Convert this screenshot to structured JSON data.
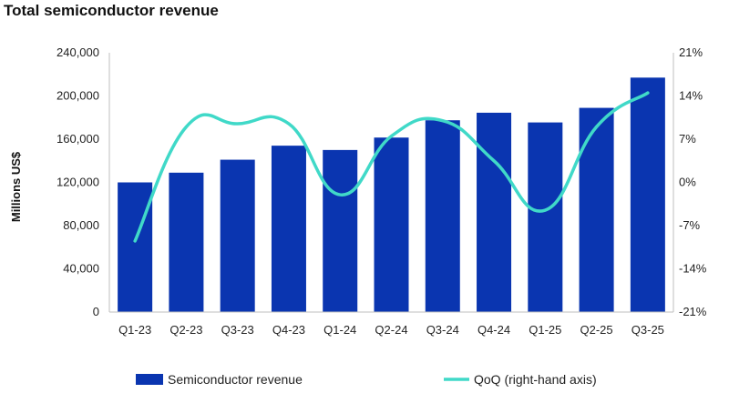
{
  "chart_data": {
    "type": "bar",
    "title": "Total semiconductor revenue",
    "categories": [
      "Q1-23",
      "Q2-23",
      "Q3-23",
      "Q4-23",
      "Q1-24",
      "Q2-24",
      "Q3-24",
      "Q4-24",
      "Q1-25",
      "Q2-25",
      "Q3-25"
    ],
    "series": [
      {
        "name": "Semiconductor revenue",
        "type": "bar",
        "axis": "left",
        "color": "#0a35b0",
        "values": [
          120000,
          129000,
          141000,
          154000,
          150000,
          161500,
          177500,
          184500,
          175500,
          189000,
          217000
        ]
      },
      {
        "name": "QoQ (right-hand axis)",
        "type": "line",
        "axis": "right",
        "color": "#40d9c8",
        "values": [
          -9.5,
          9.0,
          9.5,
          9.5,
          -2.0,
          7.5,
          10.0,
          3.5,
          -4.5,
          9.0,
          14.5
        ]
      }
    ],
    "ylabel": "Millions US$",
    "ylim": [
      0,
      240000
    ],
    "yticks": [
      0,
      40000,
      80000,
      120000,
      160000,
      200000,
      240000
    ],
    "ytick_labels": [
      "0",
      "40,000",
      "80,000",
      "120,000",
      "160,000",
      "200,000",
      "240,000"
    ],
    "y2lim": [
      -21,
      21
    ],
    "y2ticks": [
      -21,
      -14,
      -7,
      0,
      7,
      14,
      21
    ],
    "y2tick_labels": [
      "-21%",
      "-14%",
      "-7%",
      "0%",
      "7%",
      "14%",
      "21%"
    ],
    "grid": false,
    "legend": "bottom"
  }
}
